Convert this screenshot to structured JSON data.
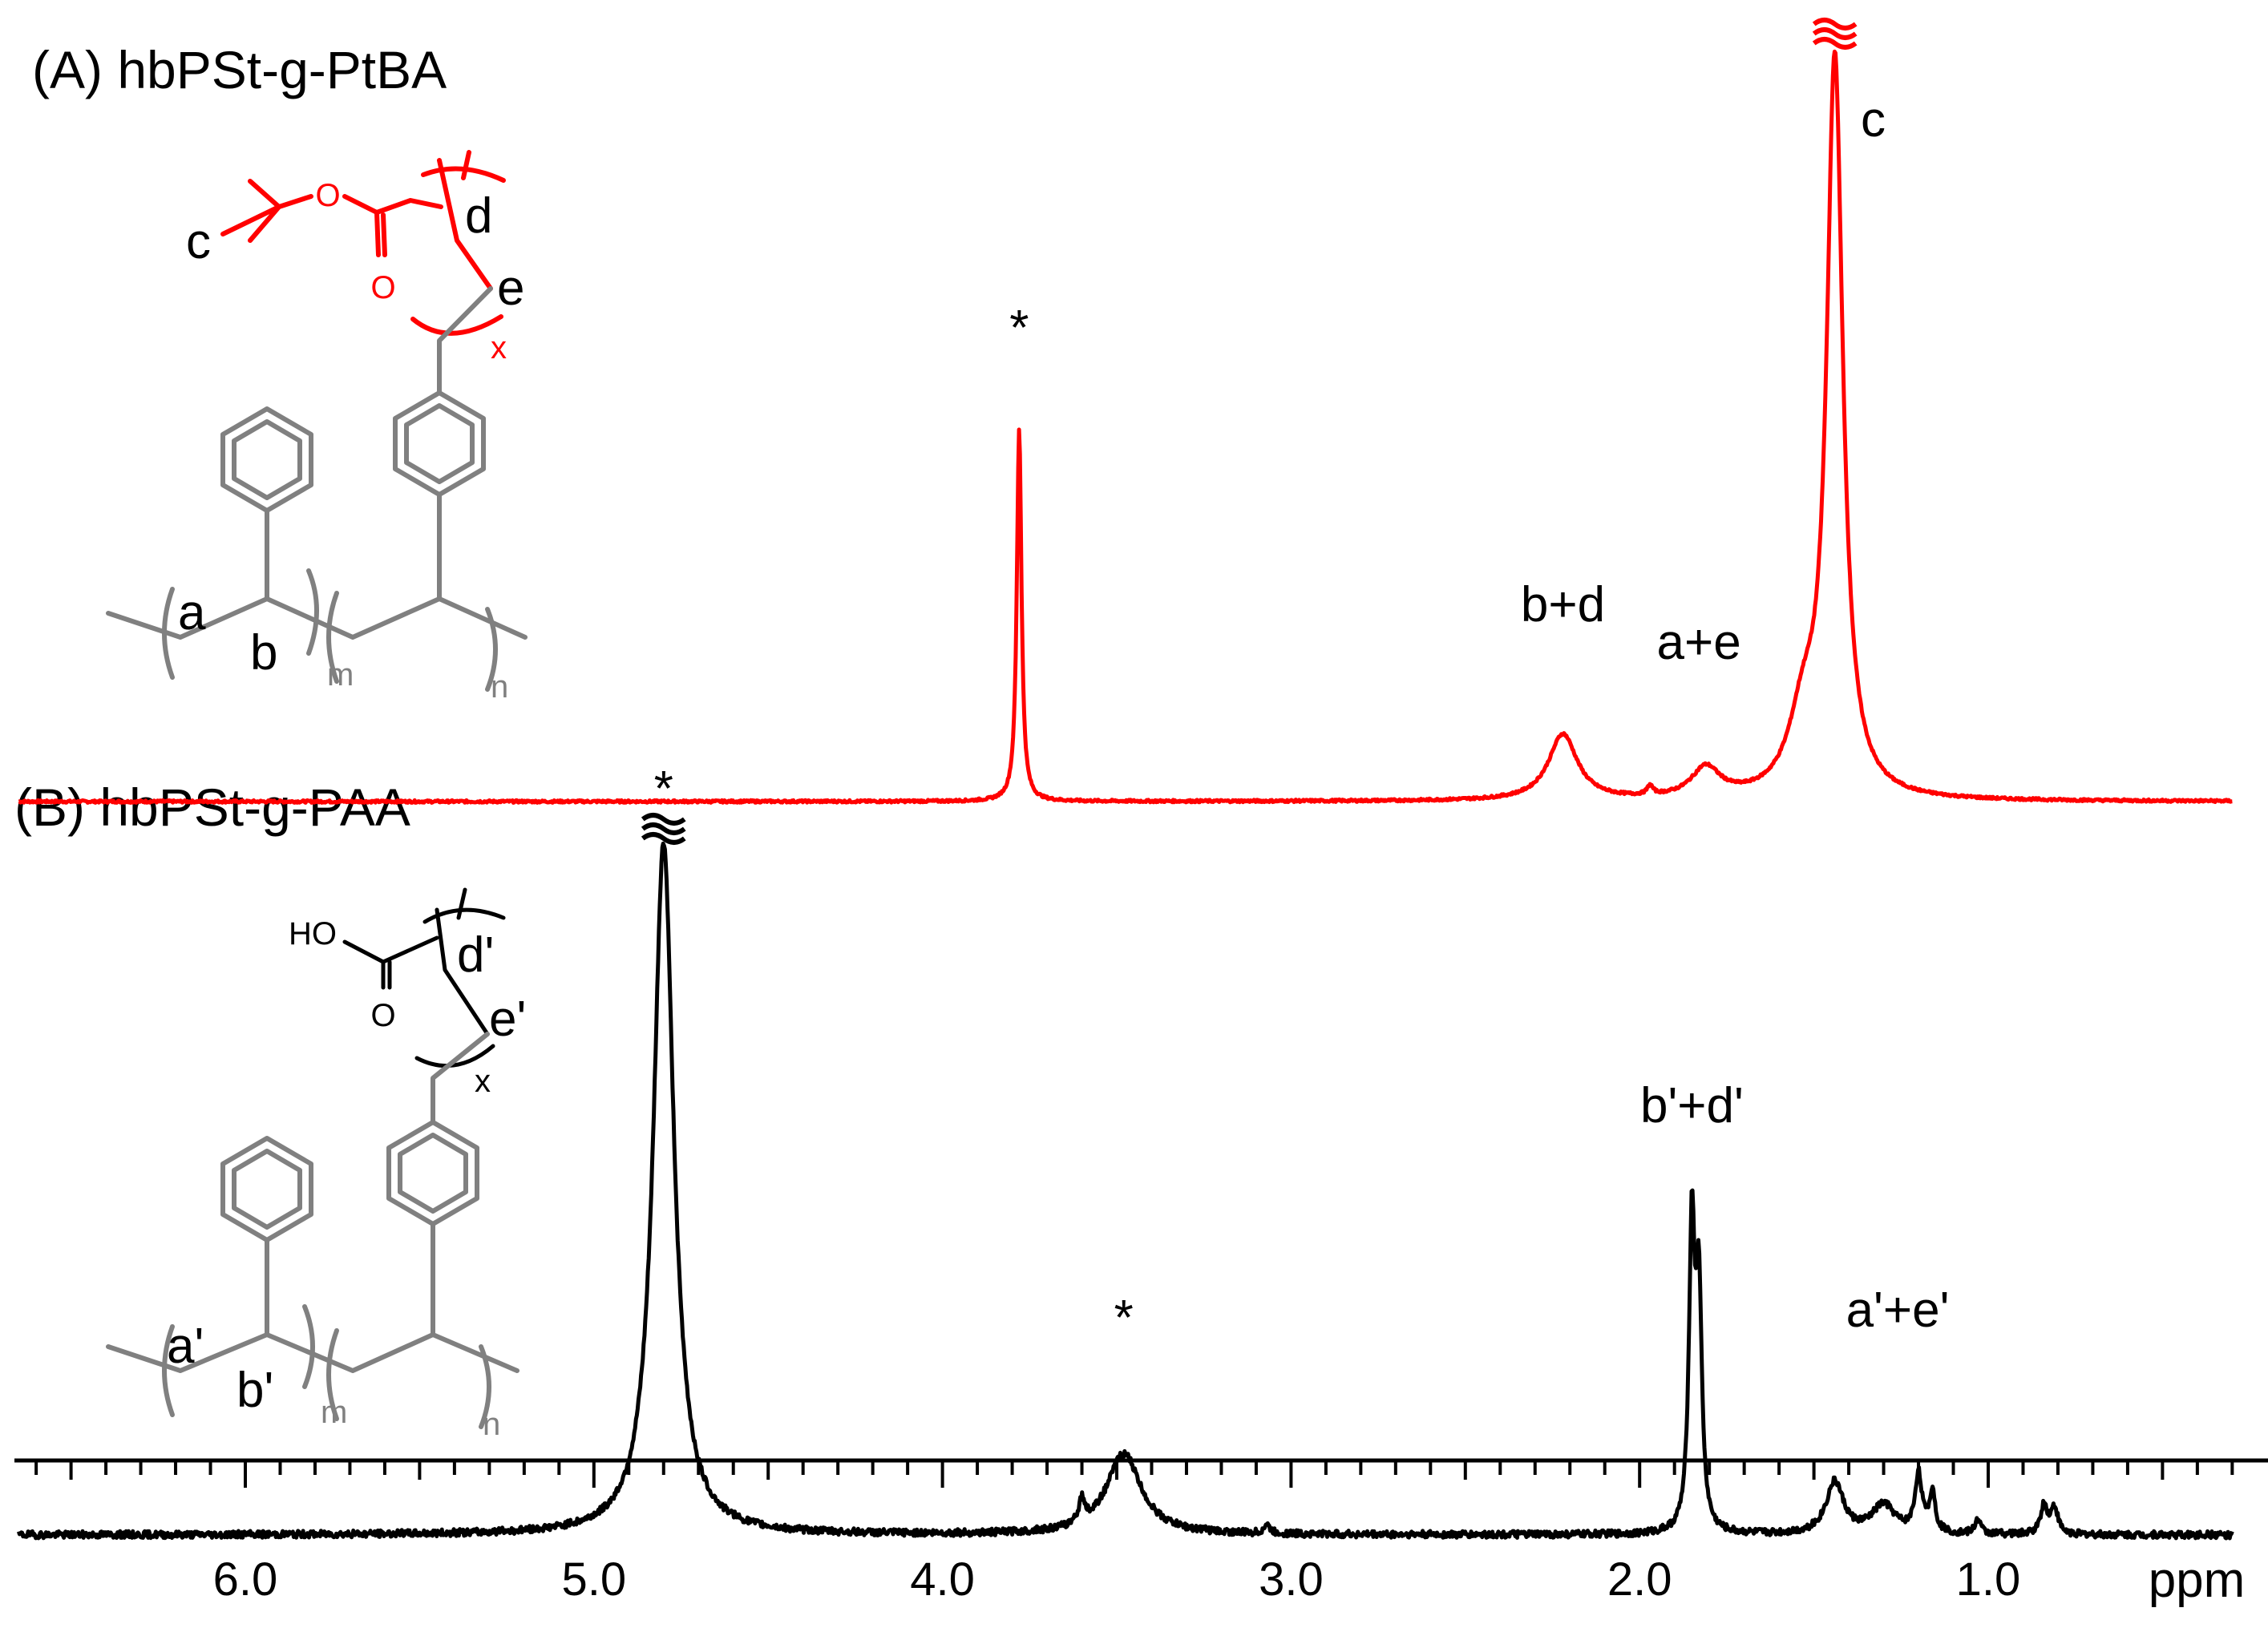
{
  "chart_data": [
    {
      "type": "line",
      "panel_label": "(A) hbPSt-g-PtBA",
      "color": "#ff0000",
      "x_direction": "descending",
      "xlim": [
        6.65,
        0.3
      ],
      "peaks": [
        {
          "x": 3.78,
          "height": 0.62,
          "width": 0.008
        },
        {
          "x": 2.22,
          "height": 0.11,
          "width": 0.05
        },
        {
          "x": 1.97,
          "height": 0.015,
          "width": 0.01
        },
        {
          "x": 1.81,
          "height": 0.05,
          "width": 0.05
        },
        {
          "x": 1.53,
          "height": 0.12,
          "width": 0.05
        },
        {
          "x": 1.44,
          "height": 1.22,
          "width": 0.028
        }
      ],
      "offscale_marker_x": 1.44,
      "annotations": [
        {
          "text": "*",
          "x": 3.78
        },
        {
          "text": "b+d",
          "x": 2.22
        },
        {
          "text": "a+e",
          "x": 1.83
        },
        {
          "text": "c",
          "x": 1.33
        }
      ],
      "structure_labels": {
        "methyl": "c",
        "chain_ch": "d",
        "chain_ch2": "e",
        "repeat_x": "x",
        "backbone_ch2": "a",
        "backbone_ch": "b",
        "repeat_m": "m",
        "repeat_n": "n"
      },
      "structure_atoms": {
        "ether_o": "O",
        "carbonyl_o": "O"
      }
    },
    {
      "type": "line",
      "panel_label": "(B) hbPSt-g-PAA",
      "color": "#000000",
      "x_direction": "descending",
      "xlim": [
        6.65,
        0.3
      ],
      "peaks": [
        {
          "x": 4.8,
          "height": 1.2,
          "width": 0.035
        },
        {
          "x": 3.6,
          "height": 0.04,
          "width": 0.01
        },
        {
          "x": 3.48,
          "height": 0.14,
          "width": 0.06
        },
        {
          "x": 3.07,
          "height": 0.015,
          "width": 0.01
        },
        {
          "x": 1.85,
          "height": 0.52,
          "width": 0.01
        },
        {
          "x": 1.83,
          "height": 0.4,
          "width": 0.01
        },
        {
          "x": 1.44,
          "height": 0.09,
          "width": 0.03
        },
        {
          "x": 1.3,
          "height": 0.05,
          "width": 0.04
        },
        {
          "x": 1.2,
          "height": 0.1,
          "width": 0.012
        },
        {
          "x": 1.16,
          "height": 0.07,
          "width": 0.01
        },
        {
          "x": 1.03,
          "height": 0.025,
          "width": 0.01
        },
        {
          "x": 0.84,
          "height": 0.05,
          "width": 0.012
        },
        {
          "x": 0.81,
          "height": 0.045,
          "width": 0.012
        }
      ],
      "offscale_marker_x": 4.8,
      "annotations": [
        {
          "text": "*",
          "x": 4.8
        },
        {
          "text": "*",
          "x": 3.48
        },
        {
          "text": "b'+d'",
          "x": 1.85
        },
        {
          "text": "a'+e'",
          "x": 1.26
        }
      ],
      "structure_labels": {
        "chain_ch": "d'",
        "chain_ch2": "e'",
        "repeat_x": "x",
        "backbone_ch2": "a'",
        "backbone_ch": "b'",
        "repeat_m": "m",
        "repeat_n": "n"
      },
      "structure_atoms": {
        "hydroxyl": "HO",
        "carbonyl_o": "O"
      }
    }
  ],
  "x_axis": {
    "unit_label": "ppm",
    "tick_labels": [
      "6.0",
      "5.0",
      "4.0",
      "3.0",
      "2.0",
      "1.0"
    ],
    "tick_values": [
      6.0,
      5.0,
      4.0,
      3.0,
      2.0,
      1.0
    ],
    "minor_step": 0.1
  }
}
